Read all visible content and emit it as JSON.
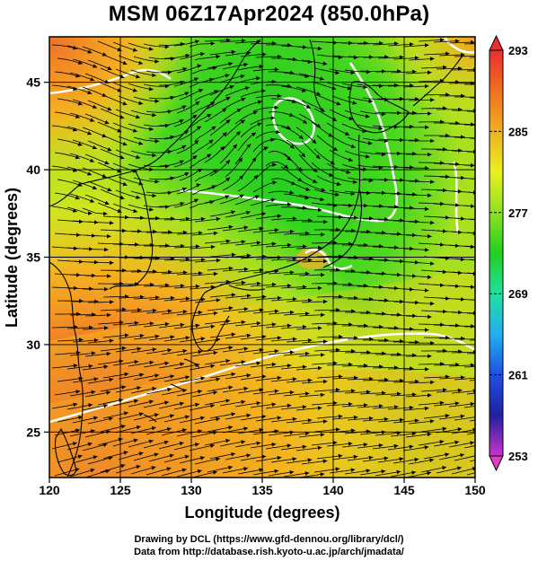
{
  "title": "MSM 06Z17Apr2024 (850.0hPa)",
  "x_axis": {
    "label": "Longitude (degrees)",
    "range": [
      120,
      150
    ],
    "ticks": [
      "120",
      "125",
      "130",
      "135",
      "140",
      "145",
      "150"
    ]
  },
  "y_axis": {
    "label": "Latitude  (degrees)",
    "range": [
      22.4,
      47.6
    ],
    "ticks": [
      "25",
      "30",
      "35",
      "40",
      "45"
    ]
  },
  "colorbar": {
    "min": 253,
    "max": 293,
    "labels": [
      "293",
      "285",
      "277",
      "269",
      "261",
      "253"
    ],
    "colors": [
      "#cc33cc",
      "#2020a0",
      "#2050e0",
      "#20b0f0",
      "#20e0a0",
      "#20d020",
      "#90e020",
      "#e8f020",
      "#f0b020",
      "#f07020",
      "#e83030"
    ]
  },
  "credits": {
    "line1": "Drawing by DCL (https://www.gfd-dennou.org/library/dcl/)",
    "line2": "Data from http://database.rish.kyoto-u.ac.jp/arch/jmadata/"
  }
}
